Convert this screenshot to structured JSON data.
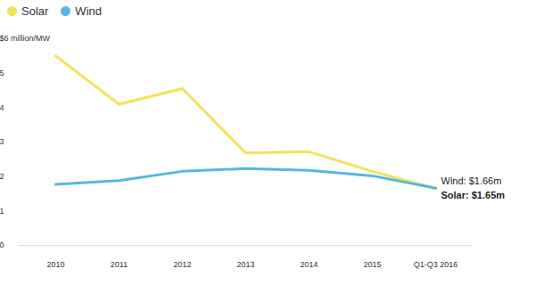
{
  "chart_data": {
    "type": "line",
    "categories": [
      "2010",
      "2011",
      "2012",
      "2013",
      "2014",
      "2015",
      "Q1-Q3 2016"
    ],
    "series": [
      {
        "name": "Solar",
        "color": "#f5e15c",
        "values": [
          5.5,
          4.1,
          4.55,
          2.68,
          2.72,
          2.15,
          1.65
        ]
      },
      {
        "name": "Wind",
        "color": "#55b9df",
        "values": [
          1.77,
          1.88,
          2.15,
          2.23,
          2.18,
          2.02,
          1.66
        ]
      }
    ],
    "ylim": [
      0,
      6
    ],
    "yticks": [
      0,
      1,
      2,
      3,
      4,
      5,
      {
        "value": 6,
        "label": "$6 million/MW"
      }
    ],
    "grid": false,
    "legend": "top-left",
    "annotations": [
      {
        "text": "Wind: $1.66m",
        "x": "Q1-Q3 2016",
        "y": 1.66
      },
      {
        "text": "Solar: $1.65m",
        "x": "Q1-Q3 2016",
        "y": 1.65
      }
    ]
  }
}
